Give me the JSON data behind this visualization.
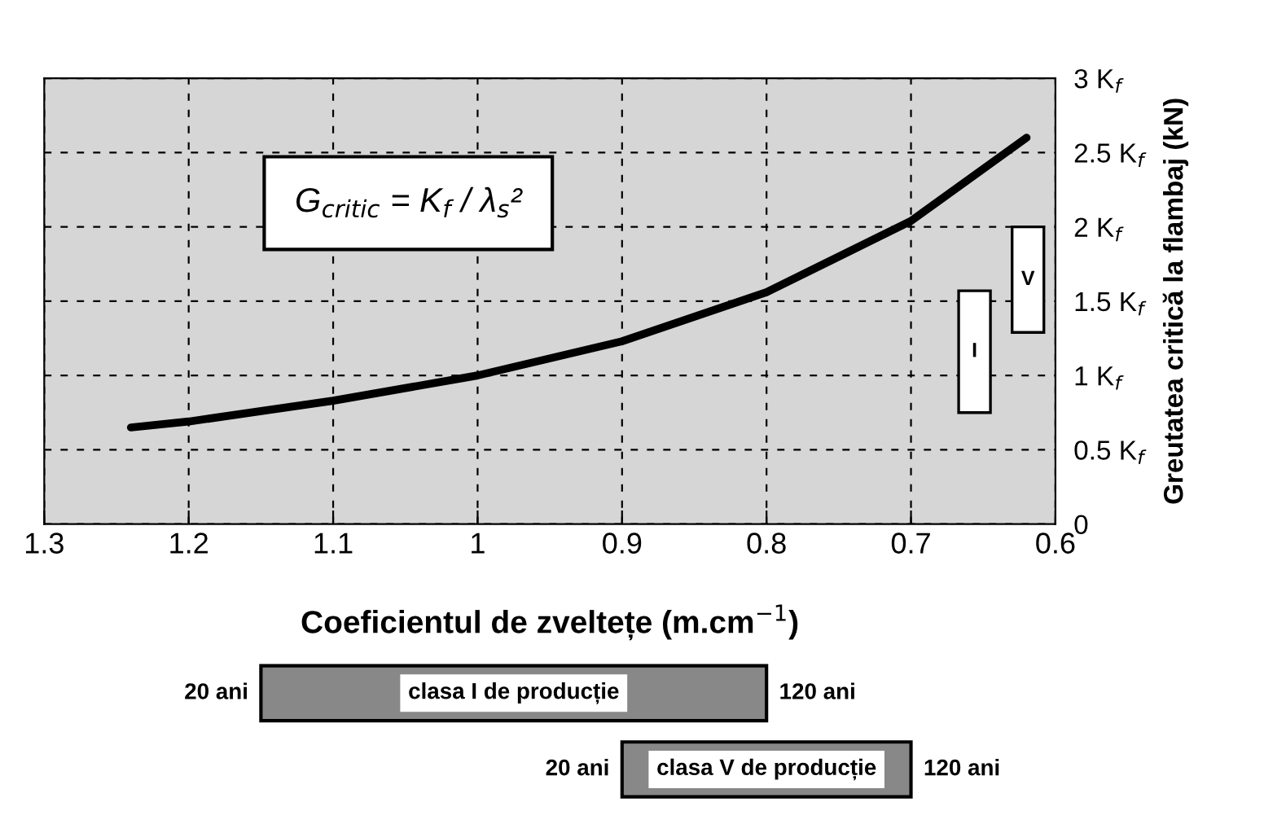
{
  "chart_data": [
    {
      "type": "line",
      "xlabel": "Coeficientul de zveltețe (m.cm$^{−1}$)",
      "ylabel": "Greutatea critică la flambaj (kN)",
      "xlim": [
        1.3,
        0.6
      ],
      "xticks": [
        1.3,
        1.2,
        1.1,
        1,
        0.9,
        0.8,
        0.7,
        0.6
      ],
      "ylim": [
        0,
        3
      ],
      "yticks": [
        0,
        {
          "value": 0.5,
          "label": "0.5 K$_{f}$"
        },
        {
          "value": 1,
          "label": "1 K$_{f}$"
        },
        {
          "value": 1.5,
          "label": "1.5 K$_{f}$"
        },
        {
          "value": 2,
          "label": "2 K$_{f}$"
        },
        {
          "value": 2.5,
          "label": "2.5 K$_{f}$"
        },
        {
          "value": 3,
          "label": "3 K$_{f}$"
        }
      ],
      "grid": true,
      "series": [
        {
          "type": "line",
          "color": "#000000",
          "x": [
            1.24,
            1.2,
            1.1,
            1.0,
            0.9,
            0.8,
            0.7,
            0.62
          ],
          "values": [
            0.65,
            0.69,
            0.83,
            1.0,
            1.23,
            1.56,
            2.04,
            2.6
          ]
        },
        {
          "type": "bar",
          "color": "#ffffff",
          "x": [
            0.656,
            0.619
          ],
          "base": [
            0.75,
            1.29
          ],
          "values": [
            0.82,
            0.71
          ],
          "value_labels": [
            "I",
            "V"
          ]
        }
      ],
      "annotations": [
        "G$_{critic}$ = K$_{f}$ / λ$_{s}$²"
      ]
    },
    {
      "type": "bar",
      "orientation": "horizontal",
      "categories": [
        null,
        null
      ],
      "xlim": [
        1.3,
        0.6
      ],
      "tick_labels": false,
      "base": [
        1.15,
        0.9
      ],
      "values": [
        -0.35,
        -0.2
      ],
      "color": "#888888",
      "value_labels": [
        "clasa I de producție",
        "clasa V de producție"
      ],
      "annotations": [
        {
          "text": "20 ani",
          "x": 1.15
        },
        {
          "text": "120 ani",
          "x": 0.8
        },
        {
          "text": "20 ani",
          "x": 0.9
        },
        {
          "text": "120 ani",
          "x": 0.7
        }
      ]
    }
  ]
}
